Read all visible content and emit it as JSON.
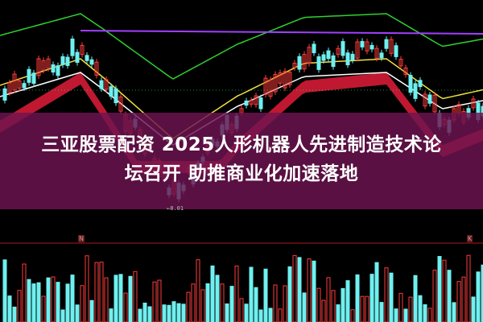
{
  "headline": {
    "line1": "三亚股票配资 2025人形机器人先进制造技术论",
    "line2": "坛召开 助推商业化加速落地"
  },
  "chart": {
    "low_marker": "←8.01",
    "volume_tags": [
      "N",
      "K"
    ]
  },
  "colors": {
    "up": "#ff3b3b",
    "down": "#6ff0f0",
    "ma_yellow": "#f0e040",
    "ma_green": "#30d030",
    "ma_purple": "#a040ff",
    "ma_white": "#ffffff",
    "ribbon_red": "#ff2040",
    "ribbon_green": "#40f060",
    "overlay": "#6e1450"
  }
}
